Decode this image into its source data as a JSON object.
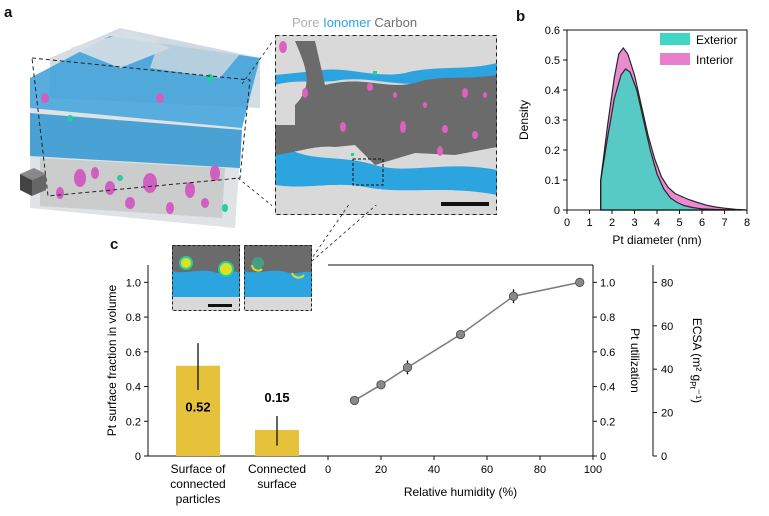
{
  "panels": {
    "a": {
      "label": "a",
      "legend": [
        {
          "text": "Pore",
          "color": "#b0b0b0"
        },
        {
          "text": "Ionomer",
          "color": "#2aa3e0"
        },
        {
          "text": "Carbon",
          "color": "#6f6f6f"
        }
      ]
    },
    "b": {
      "label": "b"
    },
    "c": {
      "label": "c"
    }
  },
  "colors": {
    "pore": "#d9d9d9",
    "ionomer": "#2ba4e0",
    "carbon": "#6b6b6b",
    "pt": "#e060c0",
    "exterior": "#3ed6c4",
    "interior": "#e77fcc",
    "bar": "#e6c23a",
    "line": "#7a7a7a"
  },
  "chart_data": [
    {
      "id": "density",
      "type": "area",
      "xlabel": "Pt diameter (nm)",
      "ylabel": "Density",
      "xlim": [
        0,
        8
      ],
      "ylim": [
        0,
        0.6
      ],
      "xticks": [
        "0",
        "1",
        "2",
        "3",
        "4",
        "5",
        "6",
        "7",
        "8"
      ],
      "yticks": [
        "0",
        "0.1",
        "0.2",
        "0.3",
        "0.4",
        "0.5",
        "0.6"
      ],
      "series": [
        {
          "name": "Exterior",
          "x": [
            1.5,
            1.8,
            2.1,
            2.4,
            2.6,
            2.8,
            3.1,
            3.4,
            3.7,
            4.0,
            4.3,
            4.6,
            4.9,
            5.2,
            5.6,
            6.0,
            6.5,
            7.0,
            7.5
          ],
          "y": [
            0.1,
            0.24,
            0.37,
            0.45,
            0.47,
            0.46,
            0.4,
            0.3,
            0.2,
            0.12,
            0.07,
            0.04,
            0.025,
            0.015,
            0.008,
            0.004,
            0.002,
            0.001,
            0
          ]
        },
        {
          "name": "Interior",
          "x": [
            1.5,
            1.8,
            2.1,
            2.3,
            2.5,
            2.7,
            3.0,
            3.3,
            3.6,
            3.9,
            4.2,
            4.5,
            4.8,
            5.1,
            5.4,
            5.8,
            6.2,
            6.6,
            7.0,
            7.5,
            8.0
          ],
          "y": [
            0.1,
            0.28,
            0.44,
            0.52,
            0.54,
            0.52,
            0.45,
            0.35,
            0.25,
            0.17,
            0.11,
            0.075,
            0.055,
            0.045,
            0.035,
            0.025,
            0.016,
            0.01,
            0.006,
            0.002,
            0
          ]
        }
      ]
    },
    {
      "id": "surface-fraction",
      "type": "bar",
      "ylabel": "Pt surface fraction in volume",
      "ylim": [
        0,
        1.1
      ],
      "yticks": [
        "0",
        "0.2",
        "0.4",
        "0.6",
        "0.8",
        "1.0"
      ],
      "categories": [
        "Surface of connected particles",
        "Connected surface"
      ],
      "category_lines": [
        [
          "Surface of",
          "connected",
          "particles"
        ],
        [
          "Connected",
          "surface"
        ]
      ],
      "values": [
        0.52,
        0.15
      ],
      "value_labels": [
        "0.52",
        "0.15"
      ],
      "error_low": [
        0.38,
        0.06
      ],
      "error_high": [
        0.65,
        0.23
      ]
    },
    {
      "id": "utilization",
      "type": "line",
      "xlabel": "Relative humidity (%)",
      "ylabel_right": "Pt utilization",
      "ylabel_ecsa": "ECSA (m² g",
      "ylabel_ecsa_sub": "Pt",
      "ylabel_ecsa_end": "⁻¹)",
      "xlim": [
        0,
        100
      ],
      "ylim": [
        0,
        1.1
      ],
      "xticks": [
        "0",
        "20",
        "40",
        "60",
        "80",
        "100"
      ],
      "yticks": [
        "0",
        "0.2",
        "0.4",
        "0.6",
        "0.8",
        "1.0"
      ],
      "ecsa_ticks": [
        "0",
        "20",
        "40",
        "60",
        "80"
      ],
      "ecsa_lim": [
        0,
        88
      ],
      "x": [
        10,
        20,
        30,
        50,
        70,
        95
      ],
      "y": [
        0.32,
        0.41,
        0.51,
        0.7,
        0.92,
        1.0
      ],
      "err": [
        0,
        0,
        0.04,
        0,
        0.04,
        0
      ]
    }
  ]
}
